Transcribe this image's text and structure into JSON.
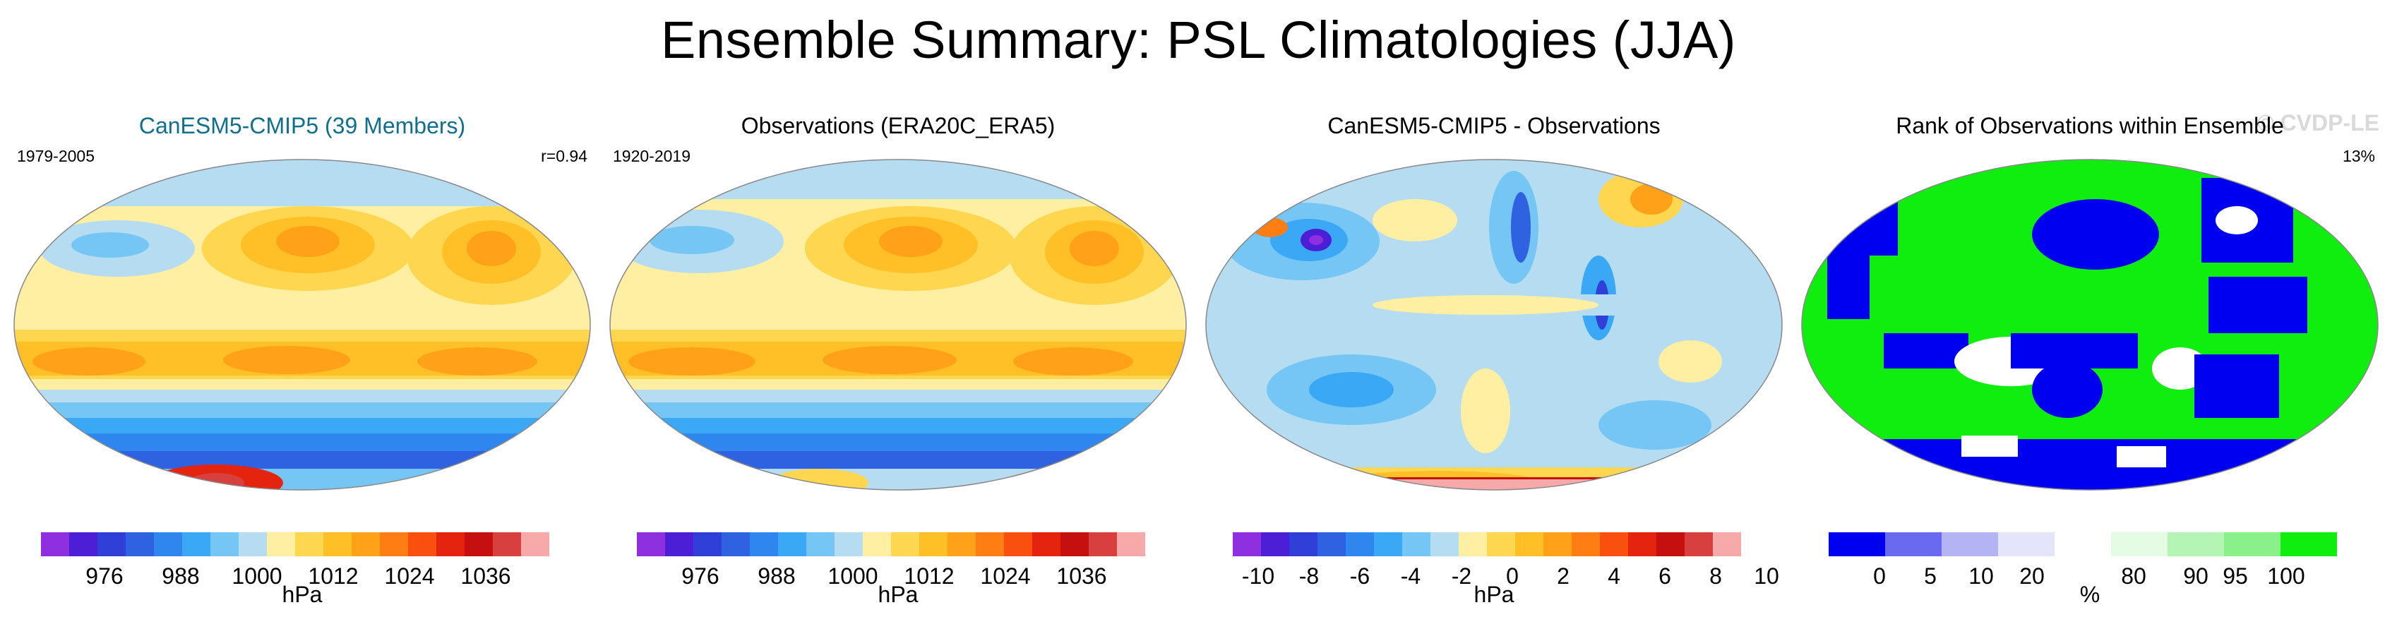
{
  "figure": {
    "title": "Ensemble Summary: PSL Climatologies (JJA)",
    "watermark": "© CVDP-LE"
  },
  "panels": [
    {
      "title": "CanESM5-CMIP5 (39 Members)",
      "left_label": "1979-2005",
      "right_label": "r=0.94",
      "colorbar": {
        "colors": [
          "#8e2fe0",
          "#4c1fd6",
          "#2f3fd8",
          "#2e62e0",
          "#2f86ee",
          "#3aa8f5",
          "#75c6f4",
          "#b6dcf1",
          "#ffefa3",
          "#ffd650",
          "#ffbf26",
          "#ffa219",
          "#ff7e14",
          "#f95010",
          "#e4240e",
          "#c61010",
          "#d84040",
          "#f7a8a8"
        ],
        "ticks": [
          "976",
          "988",
          "1000",
          "1012",
          "1024",
          "1036"
        ],
        "units": "hPa"
      }
    },
    {
      "title": "Observations (ERA20C_ERA5)",
      "left_label": "1920-2019",
      "right_label": "",
      "colorbar": {
        "colors": [
          "#8e2fe0",
          "#4c1fd6",
          "#2f3fd8",
          "#2e62e0",
          "#2f86ee",
          "#3aa8f5",
          "#75c6f4",
          "#b6dcf1",
          "#ffefa3",
          "#ffd650",
          "#ffbf26",
          "#ffa219",
          "#ff7e14",
          "#f95010",
          "#e4240e",
          "#c61010",
          "#d84040",
          "#f7a8a8"
        ],
        "ticks": [
          "976",
          "988",
          "1000",
          "1012",
          "1024",
          "1036"
        ],
        "units": "hPa"
      }
    },
    {
      "title": "CanESM5-CMIP5 - Observations",
      "left_label": "",
      "right_label": "",
      "colorbar": {
        "colors": [
          "#8e2fe0",
          "#4c1fd6",
          "#2f3fd8",
          "#2e62e0",
          "#2f86ee",
          "#3aa8f5",
          "#75c6f4",
          "#b6dcf1",
          "#ffefa3",
          "#ffd650",
          "#ffbf26",
          "#ffa219",
          "#ff7e14",
          "#f95010",
          "#e4240e",
          "#c61010",
          "#d84040",
          "#f7a8a8"
        ],
        "ticks": [
          "-10",
          "-8",
          "-6",
          "-4",
          "-2",
          "0",
          "2",
          "4",
          "6",
          "8",
          "10"
        ],
        "units": "hPa"
      }
    },
    {
      "title": "Rank of Observations within Ensemble",
      "left_label": "",
      "right_label": "13%",
      "colorbar": {
        "colors": [
          "#0000f0",
          "#6a6af0",
          "#b4b4f4",
          "#e4e4fb",
          "#ffffff",
          "#e4fbe4",
          "#b4f4b4",
          "#8af08a",
          "#10ee10"
        ],
        "ticks": [
          "0",
          "5",
          "10",
          "20",
          "80",
          "90",
          "95",
          "100"
        ],
        "units": "%"
      }
    }
  ]
}
